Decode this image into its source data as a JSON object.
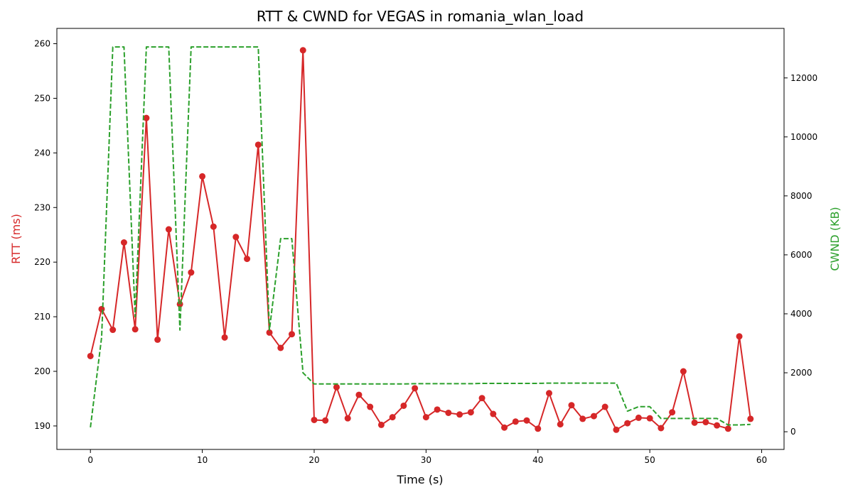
{
  "chart_data": {
    "type": "line",
    "title": "RTT & CWND for VEGAS in romania_wlan_load",
    "xlabel": "Time (s)",
    "ylabel_left": "RTT (ms)",
    "ylabel_right": "CWND (KB)",
    "xlim": [
      -3,
      62
    ],
    "ylim_left": [
      185.7,
      262.8
    ],
    "ylim_right": [
      -600,
      13680
    ],
    "xticks": [
      0,
      10,
      20,
      30,
      40,
      50,
      60
    ],
    "yticks_left": [
      190,
      200,
      210,
      220,
      230,
      240,
      250,
      260
    ],
    "yticks_right": [
      0,
      2000,
      4000,
      6000,
      8000,
      10000,
      12000
    ],
    "grid": false,
    "colors": {
      "rtt": "#d62728",
      "cwnd": "#2ca02c"
    },
    "series": [
      {
        "axis": "left",
        "style": "solid-line-with-markers",
        "x": [
          0,
          1,
          2,
          3,
          4,
          5,
          6,
          7,
          8,
          9,
          10,
          11,
          12,
          13,
          14,
          15,
          16,
          17,
          18,
          19,
          20,
          21,
          22,
          23,
          24,
          25,
          26,
          27,
          28,
          29,
          30,
          31,
          32,
          33,
          34,
          35,
          36,
          37,
          38,
          39,
          40,
          41,
          42,
          43,
          44,
          45,
          46,
          47,
          48,
          49,
          50,
          51,
          52,
          53,
          54,
          55,
          56,
          57,
          58,
          59
        ],
        "values": [
          202.8,
          211.4,
          207.6,
          223.6,
          207.7,
          246.4,
          205.8,
          226.0,
          212.3,
          218.1,
          235.7,
          226.5,
          206.2,
          224.6,
          220.6,
          241.5,
          207.1,
          204.3,
          206.8,
          258.8,
          191.1,
          191.0,
          197.1,
          191.4,
          195.7,
          193.5,
          190.2,
          191.6,
          193.7,
          196.9,
          191.6,
          193.0,
          192.4,
          192.1,
          192.5,
          195.1,
          192.2,
          189.7,
          190.8,
          191.0,
          189.5,
          196.0,
          190.3,
          193.8,
          191.3,
          191.8,
          193.5,
          189.3,
          190.5,
          191.5,
          191.4,
          189.6,
          192.5,
          200.0,
          190.6,
          190.7,
          190.1,
          189.5,
          206.4,
          191.3
        ]
      },
      {
        "axis": "right",
        "style": "dashed-line",
        "x": [
          0,
          1,
          2,
          3,
          4,
          5,
          6,
          7,
          8,
          9,
          10,
          11,
          12,
          13,
          14,
          15,
          16,
          17,
          18,
          19,
          20,
          21,
          22,
          23,
          24,
          25,
          26,
          27,
          28,
          29,
          30,
          31,
          32,
          33,
          34,
          35,
          36,
          37,
          38,
          39,
          40,
          41,
          42,
          43,
          44,
          45,
          46,
          47,
          48,
          49,
          50,
          51,
          52,
          53,
          54,
          55,
          56,
          57,
          58,
          59
        ],
        "values": [
          150,
          3200,
          13050,
          13050,
          3900,
          13050,
          13050,
          13050,
          3450,
          13050,
          13050,
          13050,
          13050,
          13050,
          13050,
          13050,
          3450,
          6550,
          6550,
          2000,
          1620,
          1620,
          1620,
          1620,
          1620,
          1620,
          1620,
          1620,
          1620,
          1630,
          1630,
          1630,
          1630,
          1630,
          1630,
          1640,
          1640,
          1640,
          1640,
          1640,
          1640,
          1650,
          1650,
          1650,
          1650,
          1650,
          1650,
          1650,
          700,
          850,
          850,
          450,
          450,
          450,
          450,
          450,
          450,
          230,
          230,
          250
        ]
      }
    ]
  }
}
